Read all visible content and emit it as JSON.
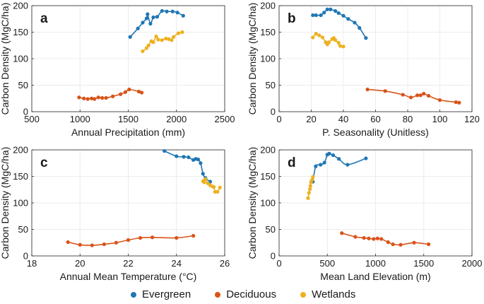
{
  "colors": {
    "Evergreen": "#1f77b4",
    "Deciduous": "#d95319",
    "Wetlands": "#edb120"
  },
  "legend": [
    "Evergreen",
    "Deciduous",
    "Wetlands"
  ],
  "chart_data": [
    {
      "panel": "a",
      "type": "line",
      "xlabel": "Annual Precipitation (mm)",
      "ylabel": "Carbon Density (MgC/ha)",
      "xlim": [
        500,
        2500
      ],
      "ylim": [
        0,
        200
      ],
      "xticks": [
        500,
        1000,
        1500,
        2000,
        2500
      ],
      "yticks": [
        0,
        50,
        100,
        150,
        200
      ],
      "series": [
        {
          "name": "Evergreen",
          "x": [
            1520,
            1600,
            1650,
            1690,
            1700,
            1730,
            1760,
            1800,
            1850,
            1900,
            1960,
            2010,
            2070
          ],
          "y": [
            141,
            157,
            168,
            176,
            184,
            166,
            178,
            179,
            190,
            189,
            189,
            187,
            181
          ]
        },
        {
          "name": "Deciduous",
          "x": [
            990,
            1040,
            1080,
            1120,
            1150,
            1190,
            1230,
            1270,
            1340,
            1420,
            1470,
            1510,
            1610,
            1640
          ],
          "y": [
            27,
            25,
            24,
            25,
            24,
            27,
            26,
            26,
            29,
            33,
            37,
            42,
            38,
            36
          ]
        },
        {
          "name": "Wetlands",
          "x": [
            1650,
            1690,
            1710,
            1740,
            1760,
            1790,
            1810,
            1850,
            1890,
            1920,
            1950,
            1970,
            2020,
            2060
          ],
          "y": [
            114,
            120,
            125,
            133,
            131,
            142,
            136,
            135,
            138,
            137,
            135,
            141,
            148,
            150
          ]
        }
      ]
    },
    {
      "panel": "b",
      "type": "line",
      "xlabel": "P. Seasonality (Unitless)",
      "ylabel": "Carbon Density (MgC/ha)",
      "xlim": [
        0,
        120
      ],
      "ylim": [
        0,
        200
      ],
      "xticks": [
        0,
        20,
        40,
        60,
        80,
        100,
        120
      ],
      "yticks": [
        0,
        50,
        100,
        150,
        200
      ],
      "series": [
        {
          "name": "Evergreen",
          "x": [
            21,
            23,
            26,
            28,
            30,
            32,
            35,
            37,
            40,
            43,
            47,
            50,
            54
          ],
          "y": [
            182,
            182,
            182,
            187,
            193,
            193,
            190,
            186,
            181,
            175,
            168,
            158,
            139
          ]
        },
        {
          "name": "Deciduous",
          "x": [
            55,
            66,
            77,
            82,
            86,
            88,
            90,
            93,
            100,
            110,
            112
          ],
          "y": [
            42,
            39,
            32,
            27,
            31,
            31,
            34,
            30,
            22,
            18,
            17
          ]
        },
        {
          "name": "Wetlands",
          "x": [
            21,
            23,
            25,
            27,
            29,
            30,
            31,
            33,
            34,
            35,
            37,
            38,
            40
          ],
          "y": [
            140,
            147,
            144,
            140,
            131,
            127,
            131,
            137,
            139,
            135,
            130,
            124,
            123
          ]
        }
      ]
    },
    {
      "panel": "c",
      "type": "line",
      "xlabel": "Annual Mean Temperature (°C)",
      "ylabel": "Carbon Density (MgC/ha)",
      "xlim": [
        18,
        26
      ],
      "ylim": [
        0,
        200
      ],
      "xticks": [
        18,
        20,
        22,
        24,
        26
      ],
      "yticks": [
        0,
        50,
        100,
        150,
        200
      ],
      "series": [
        {
          "name": "Evergreen",
          "x": [
            23.5,
            24.0,
            24.3,
            24.5,
            24.7,
            24.8,
            24.9,
            25.0,
            25.1,
            25.2,
            25.4
          ],
          "y": [
            198,
            188,
            187,
            186,
            181,
            183,
            182,
            175,
            155,
            147,
            140
          ]
        },
        {
          "name": "Deciduous",
          "x": [
            19.5,
            20.0,
            20.5,
            21.0,
            21.5,
            22.0,
            22.5,
            23.0,
            24.0,
            24.7
          ],
          "y": [
            26,
            21,
            20,
            22,
            25,
            30,
            34,
            35,
            34,
            38
          ]
        },
        {
          "name": "Wetlands",
          "x": [
            25.1,
            25.15,
            25.2,
            25.3,
            25.4,
            25.5,
            25.55,
            25.6,
            25.7,
            25.8
          ],
          "y": [
            141,
            139,
            145,
            137,
            133,
            131,
            130,
            121,
            121,
            129
          ]
        }
      ]
    },
    {
      "panel": "d",
      "type": "line",
      "xlabel": "Mean Land Elevation (m)",
      "ylabel": "Carbon Density (MgC/ha)",
      "xlim": [
        0,
        2000
      ],
      "ylim": [
        0,
        200
      ],
      "xticks": [
        0,
        500,
        1000,
        1500,
        2000
      ],
      "yticks": [
        0,
        50,
        100,
        150,
        200
      ],
      "series": [
        {
          "name": "Evergreen",
          "x": [
            350,
            380,
            430,
            470,
            500,
            520,
            560,
            620,
            710,
            900
          ],
          "y": [
            140,
            169,
            172,
            176,
            191,
            193,
            190,
            183,
            172,
            184
          ]
        },
        {
          "name": "Deciduous",
          "x": [
            650,
            790,
            880,
            930,
            980,
            1020,
            1060,
            1130,
            1180,
            1260,
            1400,
            1550
          ],
          "y": [
            43,
            36,
            34,
            33,
            32,
            33,
            32,
            26,
            22,
            21,
            25,
            22
          ]
        },
        {
          "name": "Wetlands",
          "x": [
            300,
            310,
            320,
            325,
            330,
            340,
            350
          ],
          "y": [
            109,
            119,
            126,
            132,
            139,
            143,
            149
          ]
        }
      ]
    }
  ]
}
